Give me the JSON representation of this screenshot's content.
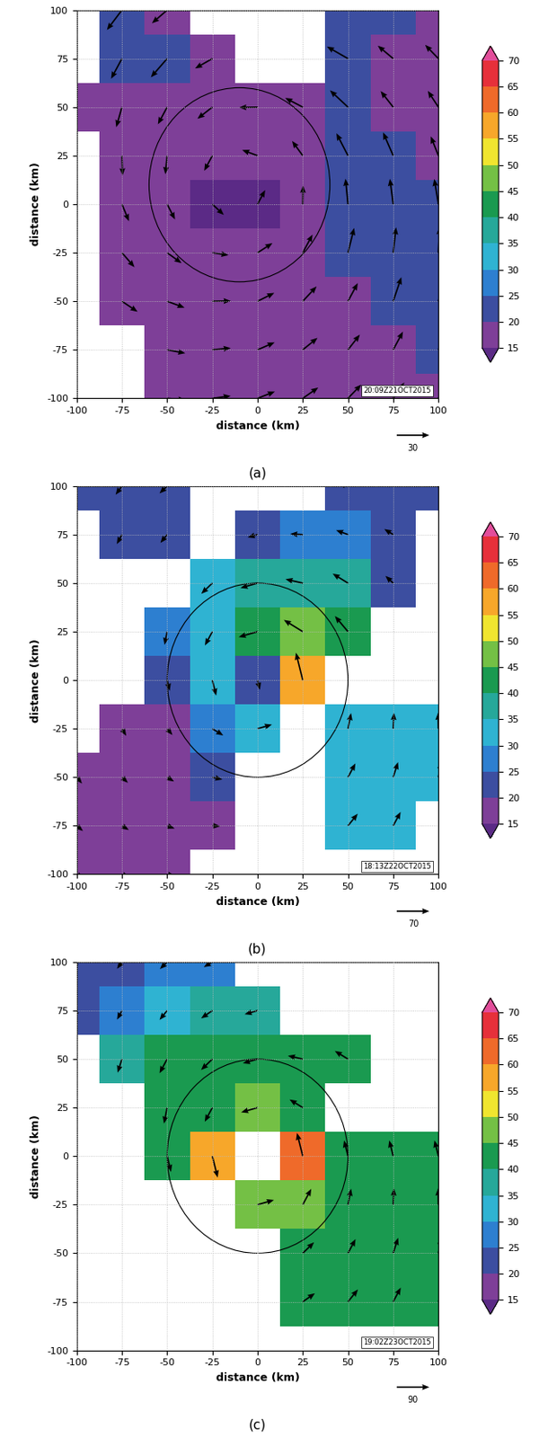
{
  "chart_data": [
    {
      "type": "vector_field",
      "panel_label": "(a)",
      "timestamp": "20:09Z21OCT2015",
      "xlabel": "distance (km)",
      "ylabel": "distance (km)",
      "xlim": [
        -100,
        100
      ],
      "ylim": [
        -100,
        100
      ],
      "xticks": [
        -100,
        -75,
        -50,
        -25,
        0,
        25,
        50,
        75,
        100
      ],
      "yticks": [
        -100,
        -75,
        -50,
        -25,
        0,
        25,
        50,
        75,
        100
      ],
      "grid": true,
      "x": [
        -100,
        -75,
        -50,
        -25,
        0,
        25,
        50,
        75,
        100
      ],
      "y": [
        100,
        75,
        50,
        25,
        0,
        -25,
        -50,
        -75,
        -100
      ],
      "speed": [
        [
          null,
          22,
          18,
          null,
          null,
          null,
          22,
          20,
          18
        ],
        [
          null,
          20,
          22,
          18,
          null,
          null,
          22,
          18,
          17
        ],
        [
          17,
          18,
          17,
          17,
          17,
          18,
          22,
          18,
          17
        ],
        [
          null,
          17,
          16,
          15,
          15,
          16,
          22,
          22,
          18
        ],
        [
          null,
          16,
          15,
          14,
          14,
          16,
          22,
          22,
          22
        ],
        [
          null,
          17,
          16,
          15,
          16,
          18,
          22,
          22,
          22
        ],
        [
          null,
          17,
          17,
          17,
          17,
          18,
          18,
          22,
          22
        ],
        [
          null,
          null,
          17,
          17,
          17,
          17,
          17,
          18,
          22
        ],
        [
          null,
          null,
          17,
          17,
          17,
          17,
          17,
          17,
          17
        ]
      ],
      "direction": [
        [
          null,
          231,
          219,
          null,
          null,
          null,
          161,
          152,
          144
        ],
        [
          null,
          240,
          227,
          208,
          null,
          null,
          152,
          142,
          136
        ],
        [
          261,
          253,
          240,
          216,
          181,
          154,
          139,
          130,
          125
        ],
        [
          null,
          272,
          264,
          240,
          161,
          128,
          119,
          115,
          113
        ],
        [
          null,
          294,
          299,
          319,
          60,
          89,
          96,
          98,
          100
        ],
        [
          null,
          313,
          326,
          352,
          31,
          60,
          75,
          83,
          87
        ],
        [
          null,
          328,
          341,
          1,
          25,
          45,
          60,
          70,
          76
        ],
        [
          null,
          null,
          350,
          5,
          22,
          37,
          50,
          60,
          67
        ],
        [
          null,
          null,
          355,
          7,
          20,
          33,
          44,
          53,
          60
        ]
      ],
      "circle": {
        "center": [
          -10,
          10
        ],
        "radius": 50
      },
      "reference_vector": 30,
      "colorbar": {
        "ticks": [
          15,
          20,
          25,
          30,
          35,
          40,
          45,
          50,
          55,
          60,
          65,
          70
        ],
        "colors": [
          "#5b2a86",
          "#7e3f98",
          "#3c4ea0",
          "#2d7fd0",
          "#2fb3d2",
          "#26a89a",
          "#1a9a50",
          "#74c045",
          "#f0e52f",
          "#f7a72a",
          "#ef6a2a",
          "#e6303a",
          "#e34d9b"
        ]
      }
    },
    {
      "type": "vector_field",
      "panel_label": "(b)",
      "timestamp": "18:13Z22OCT2015",
      "xlabel": "distance (km)",
      "ylabel": "distance (km)",
      "xlim": [
        -100,
        100
      ],
      "ylim": [
        -100,
        100
      ],
      "xticks": [
        -100,
        -75,
        -50,
        -25,
        0,
        25,
        50,
        75,
        100
      ],
      "yticks": [
        -100,
        -75,
        -50,
        -25,
        0,
        25,
        50,
        75,
        100
      ],
      "grid": true,
      "x": [
        -100,
        -75,
        -50,
        -25,
        0,
        25,
        50,
        75,
        100
      ],
      "y": [
        100,
        75,
        50,
        25,
        0,
        -25,
        -50,
        -75,
        -100
      ],
      "speed": [
        [
          22,
          22,
          22,
          null,
          null,
          null,
          22,
          22,
          22
        ],
        [
          null,
          22,
          22,
          null,
          22,
          27,
          27,
          22,
          null
        ],
        [
          null,
          null,
          null,
          32,
          38,
          38,
          38,
          22,
          null
        ],
        [
          null,
          null,
          27,
          32,
          42,
          47,
          42,
          null,
          null
        ],
        [
          null,
          null,
          22,
          32,
          20,
          57,
          null,
          null,
          null
        ],
        [
          null,
          17,
          17,
          27,
          32,
          null,
          32,
          32,
          32
        ],
        [
          17,
          17,
          17,
          22,
          null,
          null,
          32,
          32,
          32
        ],
        [
          17,
          17,
          17,
          17,
          null,
          null,
          32,
          32,
          null
        ],
        [
          17,
          17,
          17,
          null,
          null,
          null,
          null,
          null,
          null
        ]
      ],
      "direction": [
        [
          240,
          232,
          222,
          null,
          null,
          null,
          168,
          158,
          150
        ],
        [
          null,
          240,
          229,
          null,
          195,
          177,
          161,
          150,
          null
        ],
        [
          null,
          null,
          null,
          222,
          195,
          168,
          150,
          139,
          null
        ],
        [
          null,
          null,
          258,
          240,
          195,
          150,
          132,
          null,
          null
        ],
        [
          null,
          null,
          285,
          285,
          285,
          105,
          null,
          null,
          null
        ],
        [
          null,
          303,
          312,
          330,
          15,
          null,
          78,
          87,
          91
        ],
        [
          312,
          319,
          330,
          348,
          null,
          null,
          60,
          71,
          78
        ],
        [
          322,
          330,
          341,
          357,
          null,
          null,
          49,
          60,
          null
        ],
        [
          330,
          338,
          348,
          null,
          null,
          null,
          null,
          null,
          null
        ]
      ],
      "circle": {
        "center": [
          0,
          0
        ],
        "radius": 50
      },
      "reference_vector": 70,
      "colorbar": {
        "ticks": [
          15,
          20,
          25,
          30,
          35,
          40,
          45,
          50,
          55,
          60,
          65,
          70
        ],
        "colors": [
          "#5b2a86",
          "#7e3f98",
          "#3c4ea0",
          "#2d7fd0",
          "#2fb3d2",
          "#26a89a",
          "#1a9a50",
          "#74c045",
          "#f0e52f",
          "#f7a72a",
          "#ef6a2a",
          "#e6303a",
          "#e34d9b"
        ]
      }
    },
    {
      "type": "vector_field",
      "panel_label": "(c)",
      "timestamp": "19:02Z23OCT2015",
      "xlabel": "distance (km)",
      "ylabel": "distance (km)",
      "xlim": [
        -100,
        100
      ],
      "ylim": [
        -100,
        100
      ],
      "xticks": [
        -100,
        -75,
        -50,
        -25,
        0,
        25,
        50,
        75,
        100
      ],
      "yticks": [
        -100,
        -75,
        -50,
        -25,
        0,
        25,
        50,
        75,
        100
      ],
      "grid": true,
      "x": [
        -100,
        -75,
        -50,
        -25,
        0,
        25,
        50,
        75,
        100
      ],
      "y": [
        100,
        75,
        50,
        25,
        0,
        -25,
        -50,
        -75,
        -100
      ],
      "speed": [
        [
          22,
          22,
          27,
          27,
          null,
          null,
          null,
          null,
          null
        ],
        [
          22,
          27,
          32,
          37,
          37,
          null,
          null,
          null,
          null
        ],
        [
          null,
          37,
          42,
          42,
          42,
          42,
          42,
          null,
          null
        ],
        [
          null,
          null,
          42,
          42,
          47,
          42,
          null,
          null,
          null
        ],
        [
          null,
          null,
          42,
          57,
          null,
          62,
          42,
          42,
          42
        ],
        [
          null,
          null,
          null,
          null,
          47,
          47,
          42,
          42,
          42
        ],
        [
          null,
          null,
          null,
          null,
          null,
          42,
          42,
          42,
          42
        ],
        [
          null,
          null,
          null,
          null,
          null,
          40,
          42,
          42,
          42
        ],
        [
          null,
          null,
          null,
          null,
          null,
          null,
          null,
          null,
          null
        ]
      ],
      "direction": [
        [
          240,
          232,
          222,
          209,
          null,
          null,
          null,
          null,
          null
        ],
        [
          248,
          240,
          229,
          213,
          195,
          null,
          null,
          null,
          null
        ],
        [
          null,
          251,
          240,
          222,
          195,
          168,
          150,
          null,
          null
        ],
        [
          null,
          null,
          258,
          240,
          195,
          150,
          null,
          null,
          null
        ],
        [
          null,
          null,
          285,
          285,
          null,
          105,
          105,
          105,
          105
        ],
        [
          null,
          null,
          null,
          null,
          15,
          60,
          78,
          87,
          91
        ],
        [
          null,
          null,
          null,
          null,
          null,
          42,
          60,
          71,
          78
        ],
        [
          null,
          null,
          null,
          null,
          null,
          33,
          49,
          60,
          68
        ],
        [
          null,
          null,
          null,
          null,
          null,
          null,
          null,
          null,
          null
        ]
      ],
      "circle": {
        "center": [
          0,
          0
        ],
        "radius": 50
      },
      "reference_vector": 90,
      "colorbar": {
        "ticks": [
          15,
          20,
          25,
          30,
          35,
          40,
          45,
          50,
          55,
          60,
          65,
          70
        ],
        "colors": [
          "#5b2a86",
          "#7e3f98",
          "#3c4ea0",
          "#2d7fd0",
          "#2fb3d2",
          "#26a89a",
          "#1a9a50",
          "#74c045",
          "#f0e52f",
          "#f7a72a",
          "#ef6a2a",
          "#e6303a",
          "#e34d9b"
        ]
      }
    }
  ]
}
